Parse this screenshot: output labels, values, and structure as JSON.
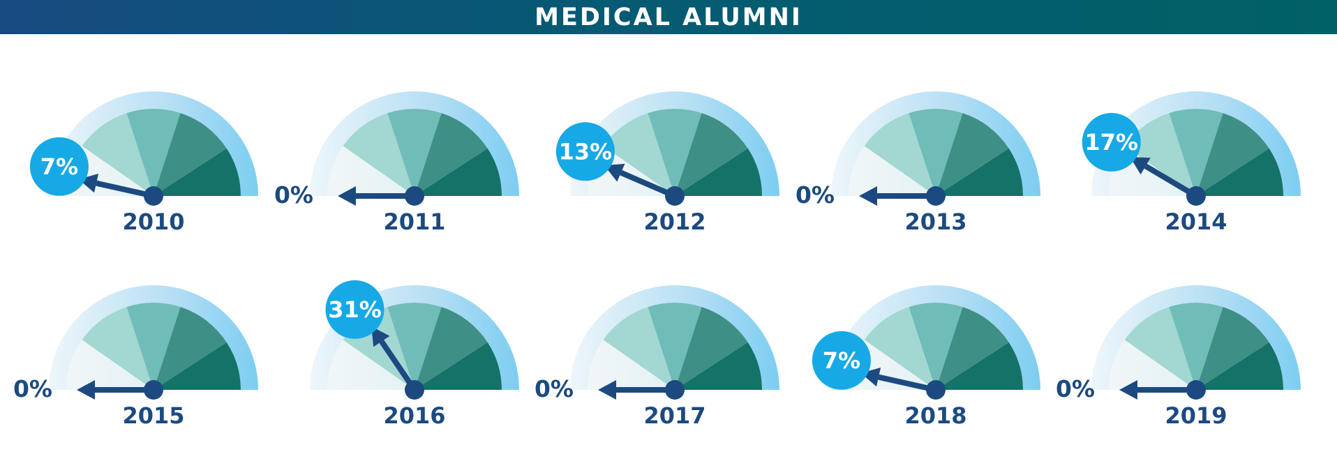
{
  "title": "MEDICAL ALUMNI",
  "colors": {
    "header_start": "#164a80",
    "header_end": "#006166",
    "needle": "#1c4a80",
    "bubble": "#16a9e6",
    "arc_outer": "#7ccdf2",
    "sector_1": "#dceef0",
    "sector_2": "#a3d7d2",
    "sector_3": "#70bcb8",
    "sector_4": "#3e8f86",
    "sector_5": "#147268"
  },
  "chart_data": {
    "type": "gauge",
    "unit": "%",
    "scale": [
      0,
      100
    ],
    "gauges": [
      {
        "year": "2010",
        "value": 7,
        "label": "7%",
        "style": "bubble"
      },
      {
        "year": "2011",
        "value": 0,
        "label": "0%",
        "style": "plain"
      },
      {
        "year": "2012",
        "value": 13,
        "label": "13%",
        "style": "bubble"
      },
      {
        "year": "2013",
        "value": 0,
        "label": "0%",
        "style": "plain"
      },
      {
        "year": "2014",
        "value": 17,
        "label": "17%",
        "style": "bubble"
      },
      {
        "year": "2015",
        "value": 0,
        "label": "0%",
        "style": "plain"
      },
      {
        "year": "2016",
        "value": 31,
        "label": "31%",
        "style": "bubble"
      },
      {
        "year": "2017",
        "value": 0,
        "label": "0%",
        "style": "plain"
      },
      {
        "year": "2018",
        "value": 7,
        "label": "7%",
        "style": "bubble"
      },
      {
        "year": "2019",
        "value": 0,
        "label": "0%",
        "style": "plain"
      }
    ]
  }
}
